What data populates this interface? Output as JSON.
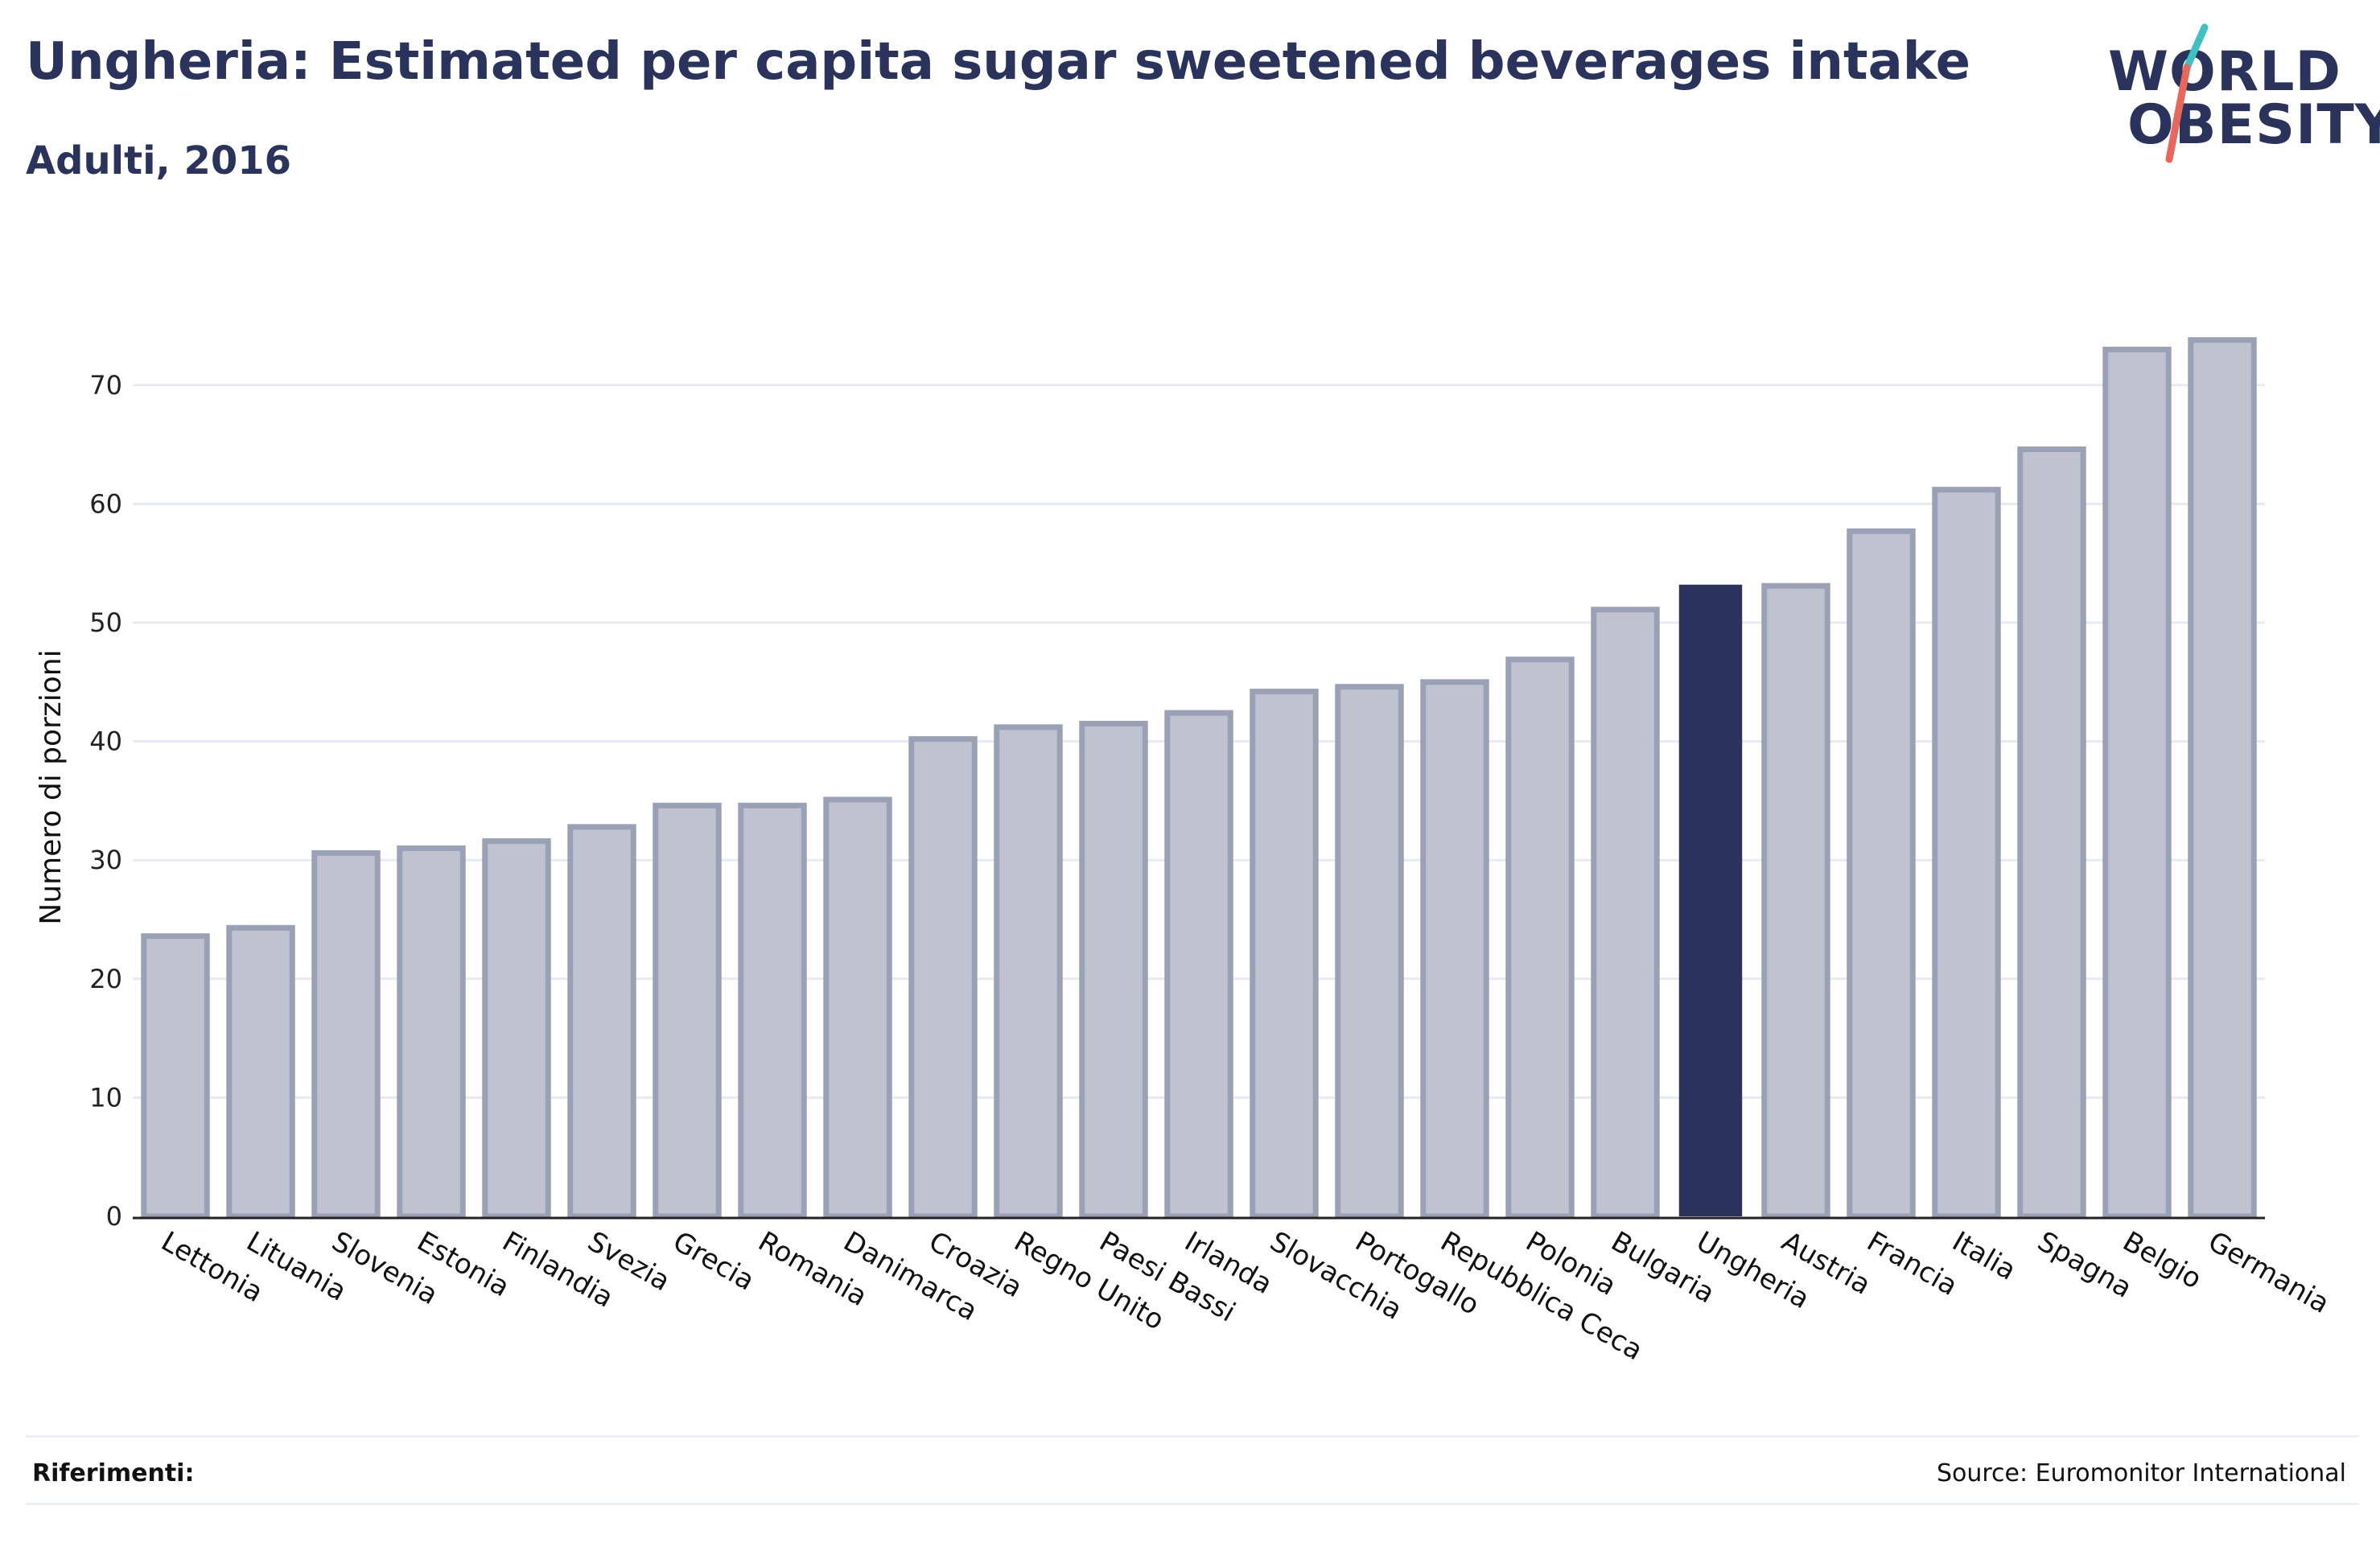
{
  "header": {
    "title": "Ungheria: Estimated per capita sugar sweetened beverages intake",
    "subtitle": "Adulti, 2016"
  },
  "logo": {
    "line1": "WORLD",
    "line2": "OBESITY",
    "slash_colors": [
      "#3ec1c1",
      "#e8675a"
    ]
  },
  "footer": {
    "references_label": "Riferimenti:",
    "source": "Source: Euromonitor International"
  },
  "colors": {
    "bar": "#c0c3cf",
    "bar_border": "#9aa0b6",
    "highlight": "#29335c",
    "grid": "#e8eaef",
    "axis": "#222222"
  },
  "chart_data": {
    "type": "bar",
    "title": "Ungheria: Estimated per capita sugar sweetened beverages intake",
    "subtitle": "Adulti, 2016",
    "xlabel": "",
    "ylabel": "Numero di porzioni",
    "ylim": [
      0,
      75
    ],
    "yticks": [
      0,
      10,
      20,
      30,
      40,
      50,
      60,
      70
    ],
    "grid": true,
    "highlight": "Ungheria",
    "categories": [
      "Lettonia",
      "Lituania",
      "Slovenia",
      "Estonia",
      "Finlandia",
      "Svezia",
      "Grecia",
      "Romania",
      "Danimarca",
      "Croazia",
      "Regno Unito",
      "Paesi Bassi",
      "Irlanda",
      "Slovacchia",
      "Portogallo",
      "Repubblica Ceca",
      "Polonia",
      "Bulgaria",
      "Ungheria",
      "Austria",
      "Francia",
      "Italia",
      "Spagna",
      "Belgio",
      "Germania"
    ],
    "values": [
      23.6,
      24.3,
      30.6,
      31.0,
      31.6,
      32.8,
      34.6,
      34.6,
      35.1,
      40.2,
      41.2,
      41.5,
      42.4,
      44.2,
      44.6,
      45.0,
      46.9,
      51.1,
      53.2,
      53.1,
      57.7,
      61.2,
      64.6,
      73.0,
      73.8
    ]
  }
}
